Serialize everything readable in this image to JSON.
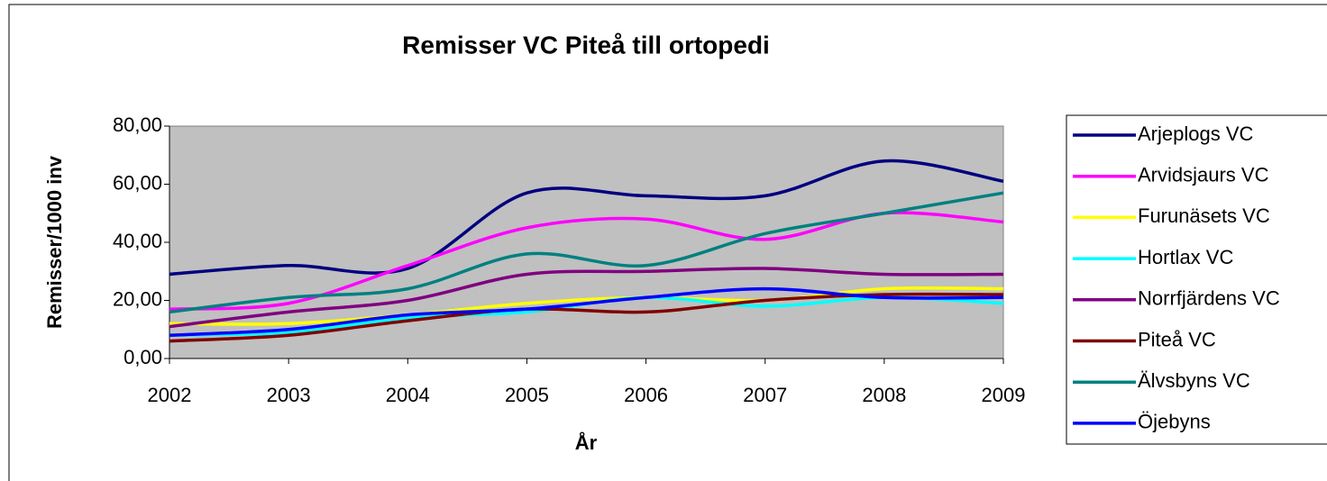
{
  "chart_data": {
    "type": "line",
    "title": "Remisser VC Piteå till ortopedi",
    "x_label": "År",
    "y_label": "Remisser/1000 inv",
    "categories": [
      "2002",
      "2003",
      "2004",
      "2005",
      "2006",
      "2007",
      "2008",
      "2009"
    ],
    "ylim": [
      0,
      80
    ],
    "yticks": [
      {
        "value": 0,
        "label": "0,00"
      },
      {
        "value": 20,
        "label": "20,00"
      },
      {
        "value": 40,
        "label": "40,00"
      },
      {
        "value": 60,
        "label": "60,00"
      },
      {
        "value": 80,
        "label": "80,00"
      }
    ],
    "grid": false,
    "smooth": true,
    "legend": "right",
    "series": [
      {
        "name": "Arjeplogs VC",
        "color": "#000080",
        "values": [
          29,
          32,
          31,
          57,
          56,
          56,
          68,
          61
        ]
      },
      {
        "name": "Arvidsjaurs VC",
        "color": "#ff00ff",
        "values": [
          17,
          19,
          32,
          45,
          48,
          41,
          50,
          47
        ]
      },
      {
        "name": "Furunäsets VC",
        "color": "#ffff00",
        "values": [
          12,
          12,
          15,
          19,
          21,
          20,
          24,
          24
        ]
      },
      {
        "name": "Hortlax VC",
        "color": "#00ffff",
        "values": [
          8,
          9,
          14,
          16,
          21,
          18,
          21,
          19
        ]
      },
      {
        "name": "Norrfjärdens VC",
        "color": "#800080",
        "values": [
          11,
          16,
          20,
          29,
          30,
          31,
          29,
          29
        ]
      },
      {
        "name": "Piteå VC",
        "color": "#800000",
        "values": [
          6,
          8,
          13,
          17,
          16,
          20,
          22,
          22
        ]
      },
      {
        "name": "Älvsbyns VC",
        "color": "#008080",
        "values": [
          16,
          21,
          24,
          36,
          32,
          43,
          50,
          57
        ]
      },
      {
        "name": "Öjebyns",
        "color": "#0000ff",
        "values": [
          8,
          10,
          15,
          17,
          21,
          24,
          21,
          21
        ]
      }
    ]
  }
}
